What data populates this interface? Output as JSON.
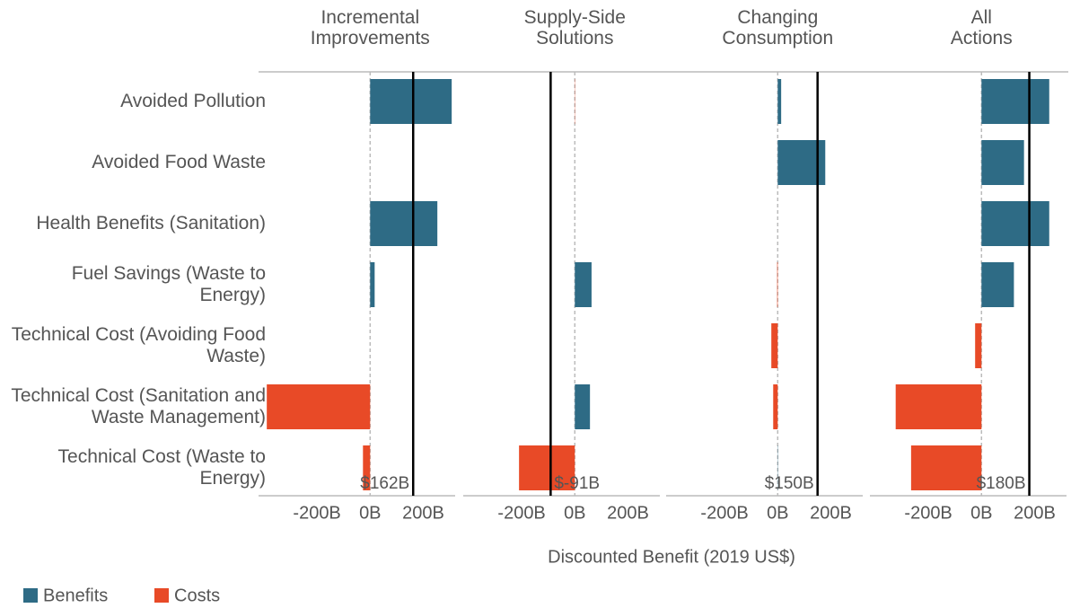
{
  "chart_data": {
    "type": "bar",
    "orientation": "horizontal",
    "categories": [
      "Avoided Pollution",
      "Avoided Food Waste",
      "Health Benefits (Sanitation)",
      "Fuel Savings (Waste to Energy)",
      "Technical Cost (Avoiding Food Waste)",
      "Technical Cost (Sanitation and Waste Management)",
      "Technical Cost (Waste to Energy)"
    ],
    "x_label": "Discounted Benefit (2019 US$)",
    "legend": [
      {
        "name": "Benefits",
        "color": "#2e6b85"
      },
      {
        "name": "Costs",
        "color": "#e84a27"
      }
    ],
    "xlim": [
      -420,
      320
    ],
    "xticks": [
      {
        "value": -200,
        "label": "-200B"
      },
      {
        "value": 0,
        "label": "0B"
      },
      {
        "value": 200,
        "label": "200B"
      }
    ],
    "panels": [
      {
        "title": "Incremental Improvements",
        "values": [
          307,
          0,
          253,
          17,
          0,
          -389,
          -27
        ],
        "net": 162,
        "net_label": "$162B"
      },
      {
        "title": "Supply-Side Solutions",
        "values": [
          -1,
          0,
          0,
          63,
          0,
          57,
          -210
        ],
        "net": -91,
        "net_label": "$-91B"
      },
      {
        "title": "Changing Consumption",
        "values": [
          13,
          179,
          0,
          -2,
          -24,
          -17,
          1
        ],
        "net": 150,
        "net_label": "$150B"
      },
      {
        "title": "All Actions",
        "values": [
          255,
          160,
          255,
          122,
          -24,
          -323,
          -265
        ],
        "net": 180,
        "net_label": "$180B"
      }
    ]
  }
}
